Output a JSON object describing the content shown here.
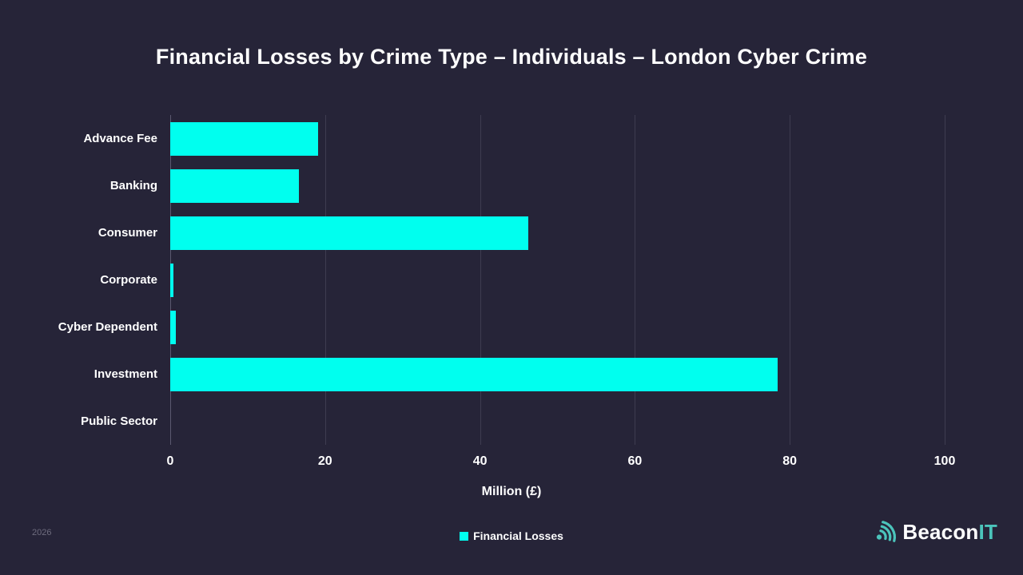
{
  "title": "Financial Losses by Crime Type – Individuals – London Cyber Crime",
  "chart_data": {
    "type": "bar",
    "orientation": "horizontal",
    "title": "Financial Losses by Crime Type – Individuals – London Cyber Crime",
    "categories": [
      "Advance Fee",
      "Banking",
      "Consumer",
      "Corporate",
      "Cyber Dependent",
      "Investment",
      "Public Sector"
    ],
    "series": [
      {
        "name": "Financial Losses",
        "values": [
          19.1,
          16.6,
          46.2,
          0.4,
          0.7,
          78.4,
          0
        ]
      }
    ],
    "xlabel": "Million (£)",
    "ylabel": "",
    "xlim": [
      0,
      100
    ],
    "xticks": [
      0,
      20,
      40,
      60,
      80,
      100
    ],
    "grid": true,
    "legend_position": "bottom-center"
  },
  "footer": {
    "year": "2026",
    "legend_label": "Financial Losses"
  },
  "brand": {
    "name_primary": "Beacon",
    "name_accent": "IT",
    "icon": "beacon-signal-icon"
  },
  "colors": {
    "background": "#262438",
    "bar": "#00FFEF",
    "grid": "#3E3C50",
    "axis": "#5B5970",
    "text": "#FFFFFF",
    "muted": "#6E6C7E",
    "brand_teal": "#4BC4BB"
  }
}
